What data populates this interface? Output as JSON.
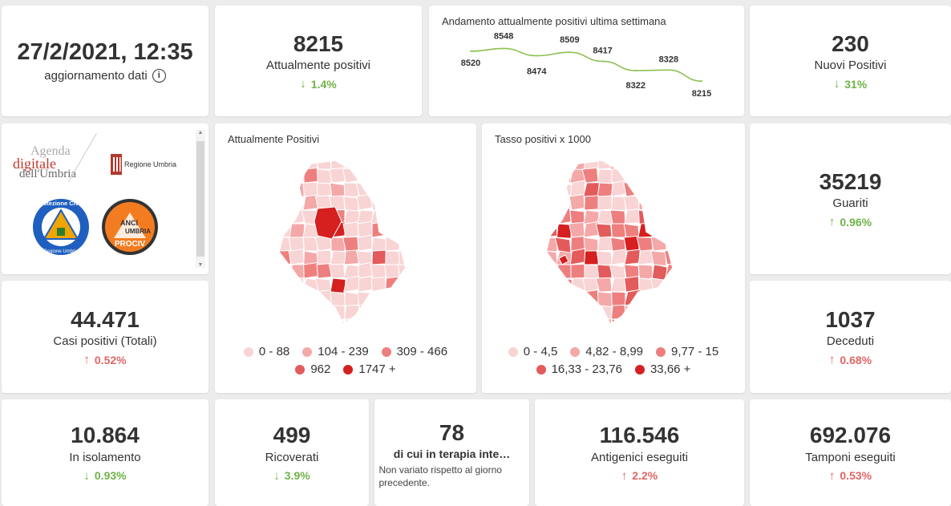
{
  "header": {
    "datetime": "27/2/2021, 12:35",
    "update_label": "aggiornamento dati",
    "info_icon": "i"
  },
  "kpis": {
    "attualmente_positivi": {
      "value": "8215",
      "label": "Attualmente positivi",
      "trend": "1.4%",
      "direction": "down"
    },
    "nuovi_positivi": {
      "value": "230",
      "label": "Nuovi Positivi",
      "trend": "31%",
      "direction": "down"
    },
    "guariti": {
      "value": "35219",
      "label": "Guariti",
      "trend": "0.96%",
      "direction": "up-good"
    },
    "deceduti": {
      "value": "1037",
      "label": "Deceduti",
      "trend": "0.68%",
      "direction": "up-bad"
    },
    "casi_totali": {
      "value": "44.471",
      "label": "Casi positivi (Totali)",
      "trend": "0.52%",
      "direction": "up-bad"
    },
    "isolamento": {
      "value": "10.864",
      "label": "In isolamento",
      "trend": "0.93%",
      "direction": "down"
    },
    "ricoverati": {
      "value": "499",
      "label": "Ricoverati",
      "trend": "3.9%",
      "direction": "down"
    },
    "terapia": {
      "value": "78",
      "label": "di cui in terapia inte…",
      "note": "Non variato rispetto al giorno precedente."
    },
    "antigenici": {
      "value": "116.546",
      "label": "Antigenici eseguiti",
      "trend": "2.2%",
      "direction": "up-bad"
    },
    "tamponi": {
      "value": "692.076",
      "label": "Tamponi eseguiti",
      "trend": "0.53%",
      "direction": "up-bad"
    }
  },
  "chart_data": {
    "type": "line",
    "title": "Andamento attualmente positivi ultima settimana",
    "x": [
      1,
      2,
      3,
      4,
      5,
      6,
      7,
      8
    ],
    "values": [
      8520,
      8548,
      8474,
      8509,
      8417,
      8322,
      8328,
      8215
    ],
    "color": "#8cc152"
  },
  "logos": {
    "agenda_line1": "Agenda",
    "agenda_line2": "digitale",
    "agenda_line3": "dell'Umbria",
    "regione": "Regione Umbria",
    "protezione": "Protezione Civile",
    "protezione_sub": "Regione Umbria",
    "anci": "ANCI",
    "anci_sub": "UMBRIA",
    "prociv": "PROCIV"
  },
  "map_positivi": {
    "title": "Attualmente Positivi",
    "legend": [
      "0 - 88",
      "104 - 239",
      "309 - 466",
      "962",
      "1747 +"
    ],
    "colors": [
      "#f9d4d4",
      "#f4a8a8",
      "#ee7f7f",
      "#e35b5b",
      "#d61f1f"
    ]
  },
  "map_tasso": {
    "title": "Tasso positivi x 1000",
    "legend": [
      "0 - 4,5",
      "4,82 - 8,99",
      "9,77 - 15",
      "16,33 - 23,76",
      "33,66 +"
    ],
    "colors": [
      "#f9d4d4",
      "#f4a8a8",
      "#ee7f7f",
      "#e35b5b",
      "#d61f1f"
    ]
  },
  "colors": {
    "down": "#6fb34a",
    "up_bad": "#e06666",
    "line": "#8cc152"
  }
}
